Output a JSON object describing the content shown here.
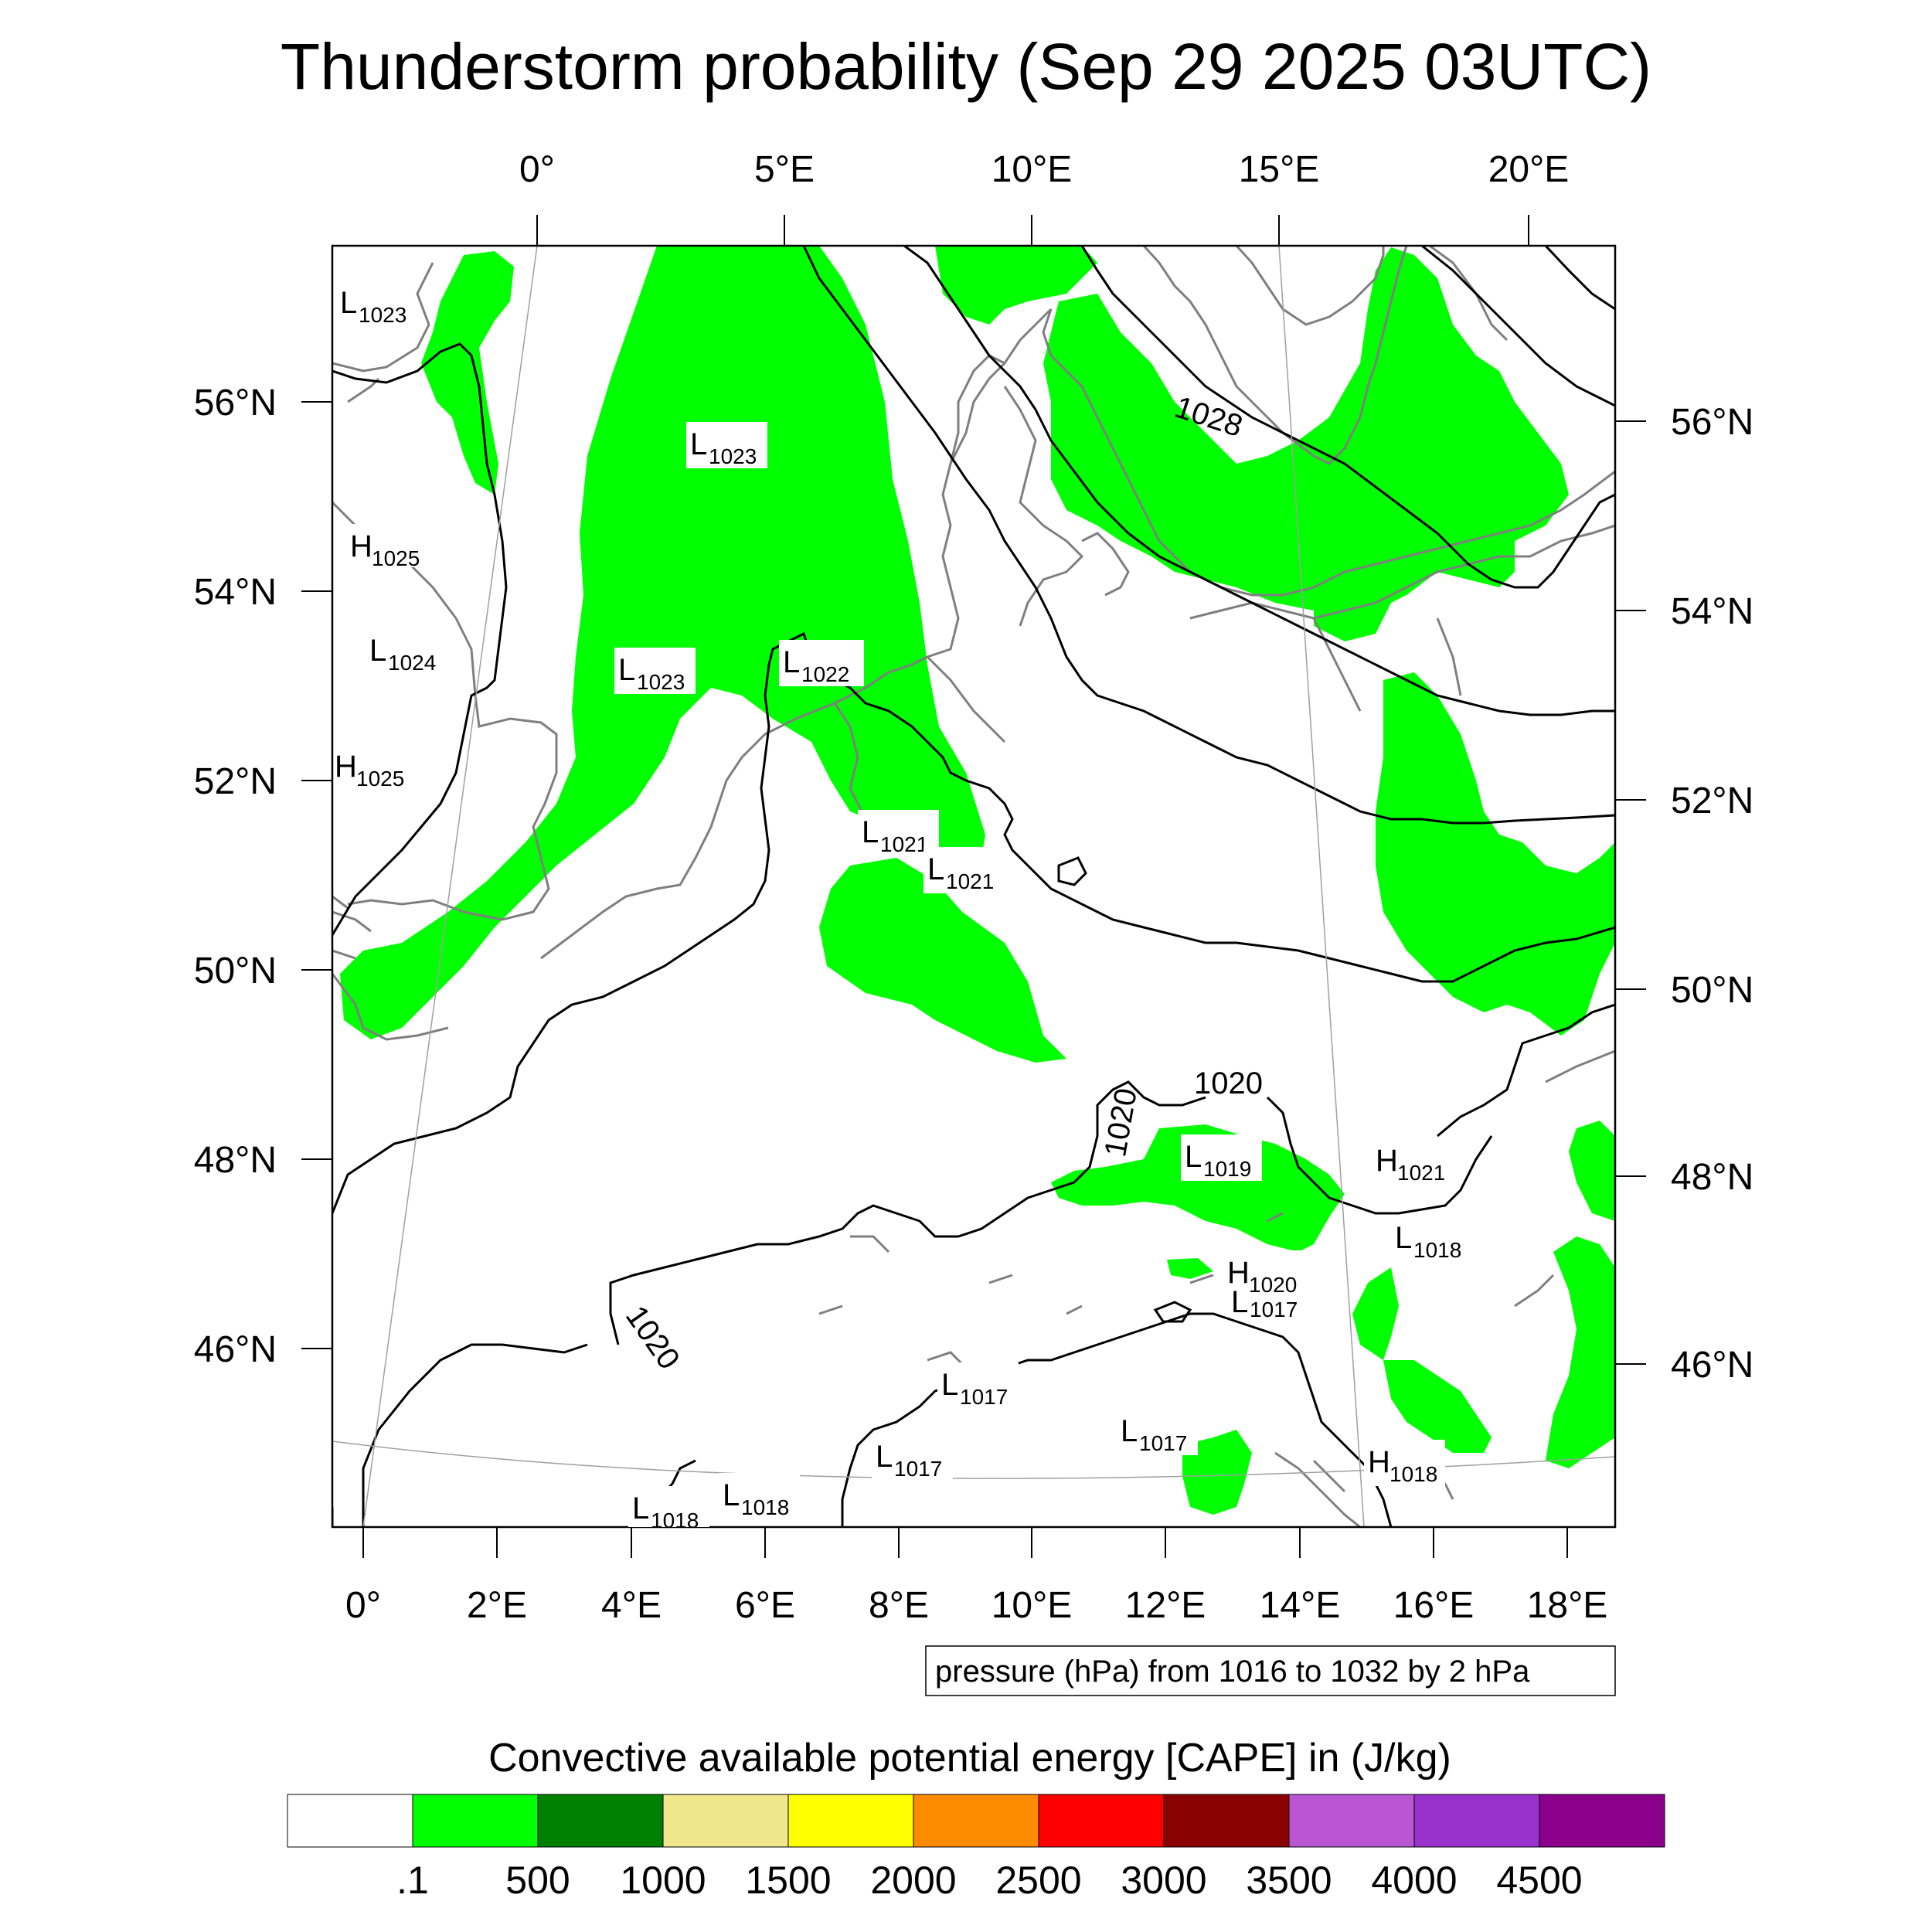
{
  "title": "Thunderstorm probability (Sep 29 2025 03UTC)",
  "top_lon_labels": [
    "0°",
    "5°E",
    "10°E",
    "15°E",
    "20°E"
  ],
  "bottom_lon_labels": [
    "0°",
    "2°E",
    "4°E",
    "6°E",
    "8°E",
    "10°E",
    "12°E",
    "14°E",
    "16°E",
    "18°E"
  ],
  "left_lat_labels": [
    "56°N",
    "54°N",
    "52°N",
    "50°N",
    "48°N",
    "46°N"
  ],
  "right_lat_labels": [
    "56°N",
    "54°N",
    "52°N",
    "50°N",
    "48°N",
    "46°N"
  ],
  "pressure_centers": [
    {
      "type": "L",
      "value": "1023"
    },
    {
      "type": "L",
      "value": "1023"
    },
    {
      "type": "H",
      "value": "1025"
    },
    {
      "type": "L",
      "value": "1024"
    },
    {
      "type": "L",
      "value": "1023"
    },
    {
      "type": "L",
      "value": "1022"
    },
    {
      "type": "H",
      "value": "1025"
    },
    {
      "type": "L",
      "value": "1021"
    },
    {
      "type": "L",
      "value": "1021"
    },
    {
      "type": "L",
      "value": "1019"
    },
    {
      "type": "H",
      "value": "1021"
    },
    {
      "type": "L",
      "value": "1018"
    },
    {
      "type": "H",
      "value": "1020"
    },
    {
      "type": "L",
      "value": "1017"
    },
    {
      "type": "L",
      "value": "1017"
    },
    {
      "type": "L",
      "value": "1017"
    },
    {
      "type": "L",
      "value": "1017"
    },
    {
      "type": "H",
      "value": "1018"
    },
    {
      "type": "L",
      "value": "1018"
    },
    {
      "type": "L",
      "value": "1018"
    }
  ],
  "contour_labels": [
    "1028",
    "1020",
    "1020",
    "1020"
  ],
  "contour_note": "pressure (hPa) from 1016 to 1032 by 2 hPa",
  "colorbar": {
    "title": "Convective available potential energy [CAPE] in (J/kg)",
    "colors": [
      "#ffffff",
      "#00ff00",
      "#008000",
      "#f0e68c",
      "#ffff00",
      "#ff8c00",
      "#ff0000",
      "#8b0000",
      "#ba55d3",
      "#9932cc",
      "#8b008b"
    ],
    "labels": [
      ".1",
      "500",
      "1000",
      "1500",
      "2000",
      "2500",
      "3000",
      "3500",
      "4000",
      "4500"
    ]
  },
  "field_color": "#00ff00"
}
